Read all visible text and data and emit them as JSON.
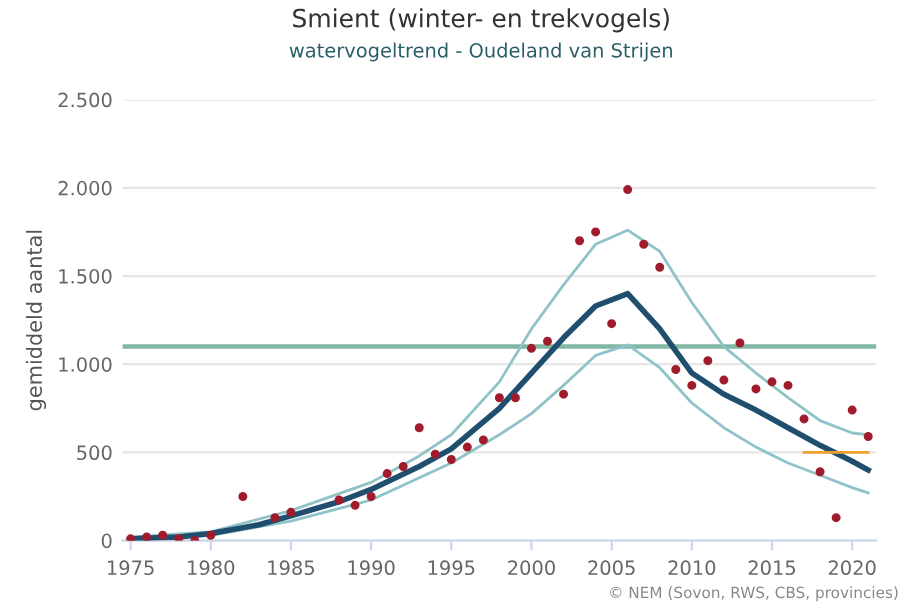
{
  "chart_data": {
    "type": "scatter",
    "title": "Smient (winter- en trekvogels)",
    "subtitle": "watervogeltrend - Oudeland van Strijen",
    "ylabel": "gemiddeld aantal",
    "xlim": [
      1974.5,
      2021.5
    ],
    "xticks": [
      1975,
      1980,
      1985,
      1990,
      1995,
      2000,
      2005,
      2010,
      2015,
      2020
    ],
    "ylim": [
      0,
      2500
    ],
    "yticks": [
      0,
      500,
      {
        "value": 1000,
        "label": "1.000"
      },
      {
        "value": 1500,
        "label": "1.500"
      },
      {
        "value": 2000,
        "label": "2.000"
      },
      {
        "value": 2500,
        "label": "2.500"
      }
    ],
    "grid": "y",
    "legend": false,
    "series": [
      {
        "type": "line",
        "color": "#8fc3c8",
        "x": [
          1975,
          1980,
          1985,
          1990,
          1993,
          1995,
          1998,
          2000,
          2002,
          2004,
          2006,
          2008,
          2010,
          2012,
          2014,
          2016,
          2018,
          2020,
          2021
        ],
        "values": [
          20,
          50,
          170,
          330,
          480,
          600,
          900,
          1200,
          1450,
          1680,
          1760,
          1640,
          1350,
          1100,
          950,
          810,
          680,
          610,
          600
        ]
      },
      {
        "type": "line",
        "color": "#8fc3c8",
        "x": [
          1975,
          1980,
          1985,
          1990,
          1995,
          1998,
          2000,
          2002,
          2004,
          2006,
          2008,
          2010,
          2012,
          2014,
          2016,
          2018,
          2020,
          2021
        ],
        "values": [
          0,
          30,
          110,
          230,
          440,
          600,
          720,
          880,
          1050,
          1110,
          980,
          780,
          640,
          530,
          440,
          370,
          300,
          270
        ]
      },
      {
        "type": "line",
        "color": "#1f4e6e",
        "x": [
          1975,
          1978,
          1980,
          1983,
          1985,
          1988,
          1990,
          1993,
          1995,
          1998,
          2000,
          2002,
          2004,
          2006,
          2008,
          2010,
          2012,
          2014,
          2016,
          2018,
          2020,
          2021
        ],
        "values": [
          10,
          20,
          40,
          90,
          140,
          220,
          290,
          420,
          520,
          750,
          950,
          1150,
          1330,
          1400,
          1200,
          950,
          830,
          740,
          640,
          540,
          450,
          400
        ]
      },
      {
        "type": "line",
        "color": "#f0a030",
        "x": [
          2017,
          2021
        ],
        "values": [
          500,
          500
        ]
      },
      {
        "color": "#a01c2c",
        "x": [
          1975,
          1976,
          1977,
          1978,
          1979,
          1980,
          1982,
          1984,
          1985,
          1988,
          1989,
          1990,
          1991,
          1992,
          1993,
          1994,
          1995,
          1996,
          1997,
          1998,
          1999,
          2000,
          2001,
          2002,
          2003,
          2004,
          2005,
          2006,
          2007,
          2008,
          2009,
          2010,
          2011,
          2012,
          2013,
          2014,
          2015,
          2016,
          2017,
          2018,
          2019,
          2020,
          2021
        ],
        "values": [
          10,
          20,
          30,
          10,
          0,
          30,
          250,
          130,
          160,
          230,
          200,
          250,
          380,
          420,
          640,
          490,
          460,
          530,
          570,
          810,
          810,
          1090,
          1130,
          830,
          1700,
          1750,
          1230,
          1990,
          1680,
          1550,
          970,
          880,
          1020,
          910,
          1120,
          860,
          900,
          880,
          690,
          390,
          130,
          740,
          590
        ]
      }
    ],
    "ref_lines": [
      {
        "axis": "y",
        "value": 1100,
        "color": "#7fb8a4"
      }
    ],
    "annotations": [
      "© NEM (Sovon, RWS, CBS, provincies)"
    ]
  }
}
